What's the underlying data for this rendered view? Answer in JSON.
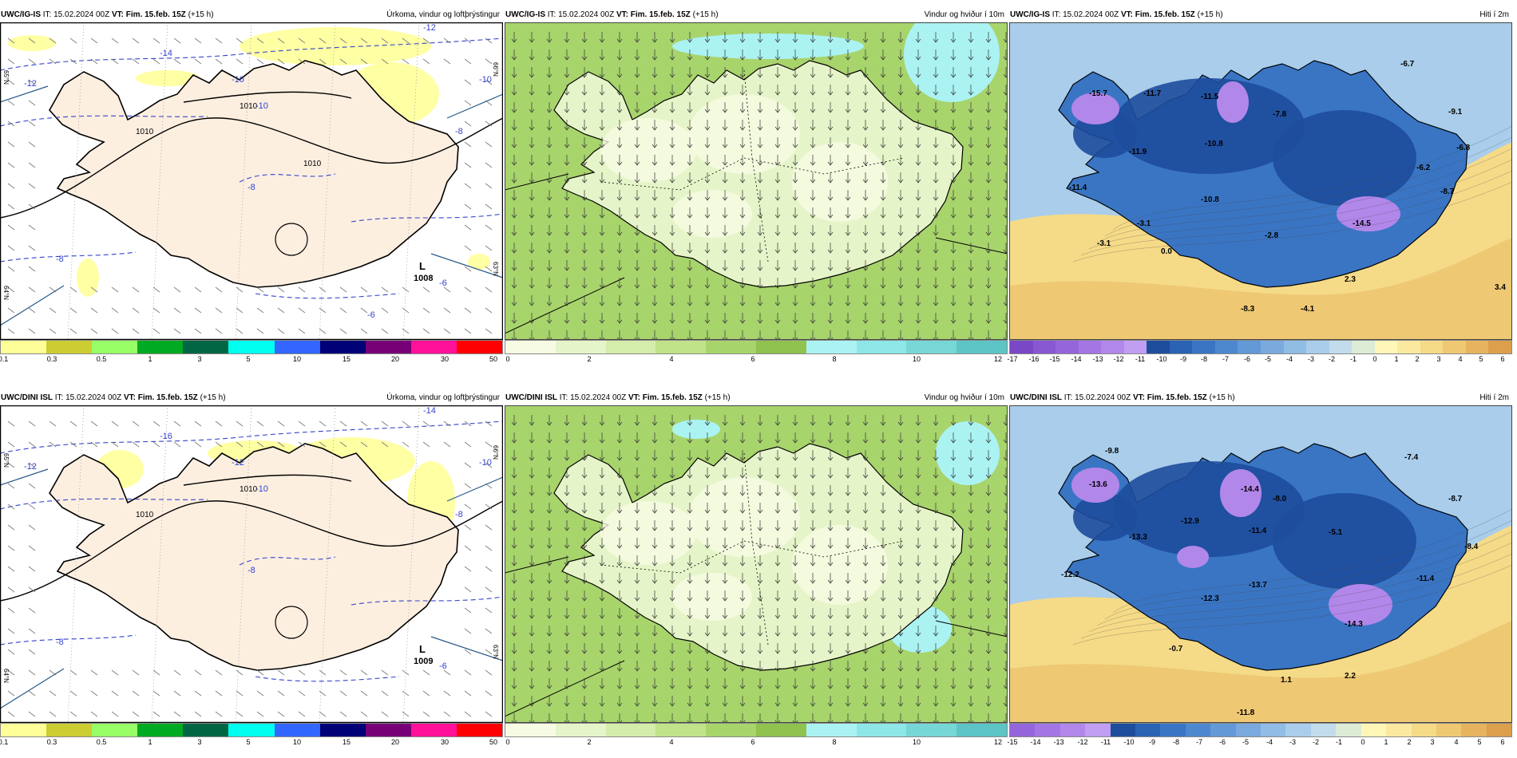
{
  "panels": [
    {
      "model": "UWC/IG-IS",
      "it": "IT: 15.02.2024 00Z",
      "vt": "VT: Fim. 15.feb. 15Z",
      "lead": "(+15 h)",
      "title": "Úrkoma, vindur og loftþrýstingur",
      "variable": "precipitation-pressure",
      "colorbar": {
        "colors": [
          "#ffff99",
          "#cccc33",
          "#99ff66",
          "#00aa22",
          "#006644",
          "#00ffee",
          "#3366ff",
          "#000077",
          "#770077",
          "#ff1199",
          "#ff0000"
        ],
        "labels": [
          "0.1",
          "0.3",
          "0.5",
          "1",
          "3",
          "5",
          "10",
          "15",
          "20",
          "30",
          "50"
        ]
      },
      "map_labels": {
        "pressure_values": [
          "1010",
          "1010",
          "1010"
        ],
        "temperature_values": [
          "-14",
          "-12",
          "-12",
          "-10",
          "-10",
          "-10",
          "-8",
          "-8",
          "-8",
          "-6",
          "-6"
        ],
        "low_center": {
          "symbol": "L",
          "value": "1008"
        },
        "lat_labels": [
          "65°N",
          "64°N",
          "66°N",
          "63°N"
        ]
      }
    },
    {
      "model": "UWC/IG-IS",
      "it": "IT: 15.02.2024 00Z",
      "vt": "VT: Fim. 15.feb. 15Z",
      "lead": "(+15 h)",
      "title": "Vindur og hviður í 10m",
      "variable": "wind",
      "colorbar": {
        "colors": [
          "#f7fbe4",
          "#e6f5c9",
          "#d4edaa",
          "#c0e38a",
          "#a8d46c",
          "#8fc24f",
          "#abf3f3",
          "#8ee6e6",
          "#77d6d6",
          "#5dc5c5"
        ],
        "labels": [
          "0",
          "2",
          "4",
          "6",
          "8",
          "10",
          "12"
        ]
      }
    },
    {
      "model": "UWC/IG-IS",
      "it": "IT: 15.02.2024 00Z",
      "vt": "VT: Fim. 15.feb. 15Z",
      "lead": "(+15 h)",
      "title": "Hiti í 2m",
      "variable": "temperature",
      "colorbar": {
        "colors": [
          "#7a47c7",
          "#8758d1",
          "#9566db",
          "#a376e3",
          "#b287ea",
          "#c09ef1",
          "#1e4d9c",
          "#2a62b4",
          "#3a75c4",
          "#4d88cf",
          "#6399d7",
          "#7aaadd",
          "#91bce4",
          "#a9cdeb",
          "#c2dceb",
          "#dcecd6",
          "#fff6b8",
          "#fbe9a0",
          "#f5da88",
          "#eec873",
          "#e6b45e",
          "#dc9f4c"
        ],
        "labels": [
          "-17",
          "-16",
          "-15",
          "-14",
          "-13",
          "-12",
          "-11",
          "-10",
          "-9",
          "-8",
          "-7",
          "-6",
          "-5",
          "-4",
          "-3",
          "-2",
          "-1",
          "0",
          "1",
          "2",
          "3",
          "4",
          "5",
          "6"
        ]
      },
      "map_labels": {
        "values": [
          "-6.7",
          "-15.7",
          "-11.7",
          "-11.5",
          "-7.8",
          "-9.1",
          "-10.8",
          "-11.9",
          "-6.2",
          "-6.8",
          "-11.4",
          "-10.8",
          "-8.7",
          "-14.5",
          "-2.8",
          "-3.1",
          "0.0",
          "2.3",
          "-3.1",
          "3.4",
          "-4.1",
          "-8.3"
        ]
      }
    },
    {
      "model": "UWC/DINI ISL",
      "it": "IT: 15.02.2024 00Z",
      "vt": "VT: Fim. 15.feb. 15Z",
      "lead": "(+15 h)",
      "title": "Úrkoma, vindur og loftþrýstingur",
      "variable": "precipitation-pressure",
      "colorbar": {
        "colors": [
          "#ffff99",
          "#cccc33",
          "#99ff66",
          "#00aa22",
          "#006644",
          "#00ffee",
          "#3366ff",
          "#000077",
          "#770077",
          "#ff1199",
          "#ff0000"
        ],
        "labels": [
          "0.1",
          "0.3",
          "0.5",
          "1",
          "3",
          "5",
          "10",
          "15",
          "20",
          "30",
          "50"
        ]
      },
      "map_labels": {
        "pressure_values": [
          "1010",
          "1010"
        ],
        "temperature_values": [
          "-16",
          "-14",
          "-12",
          "-12",
          "-10",
          "-10",
          "-8",
          "-8",
          "-8",
          "-6"
        ],
        "low_center": {
          "symbol": "L",
          "value": "1009"
        },
        "lat_labels": [
          "65°N",
          "64°N",
          "66°N",
          "63°N"
        ]
      }
    },
    {
      "model": "UWC/DINI ISL",
      "it": "IT: 15.02.2024 00Z",
      "vt": "VT: Fim. 15.feb. 15Z",
      "lead": "(+15 h)",
      "title": "Vindur og hviður í 10m",
      "variable": "wind",
      "colorbar": {
        "colors": [
          "#f7fbe4",
          "#e6f5c9",
          "#d4edaa",
          "#c0e38a",
          "#a8d46c",
          "#8fc24f",
          "#abf3f3",
          "#8ee6e6",
          "#77d6d6",
          "#5dc5c5"
        ],
        "labels": [
          "0",
          "2",
          "4",
          "6",
          "8",
          "10",
          "12"
        ]
      }
    },
    {
      "model": "UWC/DINI ISL",
      "it": "IT: 15.02.2024 00Z",
      "vt": "VT: Fim. 15.feb. 15Z",
      "lead": "(+15 h)",
      "title": "Hiti í 2m",
      "variable": "temperature",
      "colorbar": {
        "colors": [
          "#9566db",
          "#a376e3",
          "#b287ea",
          "#c09ef1",
          "#1e4d9c",
          "#2a62b4",
          "#3a75c4",
          "#4d88cf",
          "#6399d7",
          "#7aaadd",
          "#91bce4",
          "#a9cdeb",
          "#c2dceb",
          "#dcecd6",
          "#fff6b8",
          "#fbe9a0",
          "#f5da88",
          "#eec873",
          "#e6b45e",
          "#dc9f4c"
        ],
        "labels": [
          "-15",
          "-14",
          "-13",
          "-12",
          "-11",
          "-10",
          "-9",
          "-8",
          "-7",
          "-6",
          "-5",
          "-4",
          "-3",
          "-2",
          "-1",
          "0",
          "1",
          "2",
          "3",
          "4",
          "5",
          "6"
        ]
      },
      "map_labels": {
        "values": [
          "-9.8",
          "-7.4",
          "-13.6",
          "-14.4",
          "-8.0",
          "-8.7",
          "-12.9",
          "-13.3",
          "-11.4",
          "-5.1",
          "-8.4",
          "-12.2",
          "-12.3",
          "-13.7",
          "-11.4",
          "-14.3",
          "-0.7",
          "2.2",
          "1.1",
          "-11.8"
        ]
      }
    }
  ],
  "styles": {
    "land_precip": "#fdefe0",
    "sea_precip": "#ffffff",
    "precip_light": "#ffff99",
    "isobar": "#000000",
    "isotherm": "#3344cc",
    "coast": "#000000",
    "temp_land_dark": "#1e4d9c",
    "temp_land_mid": "#3a75c4",
    "temp_land_cold": "#b287ea",
    "temp_sea": "#f5da88",
    "wind_sea": "#a8d46c",
    "wind_land": "#e6f5c9"
  }
}
